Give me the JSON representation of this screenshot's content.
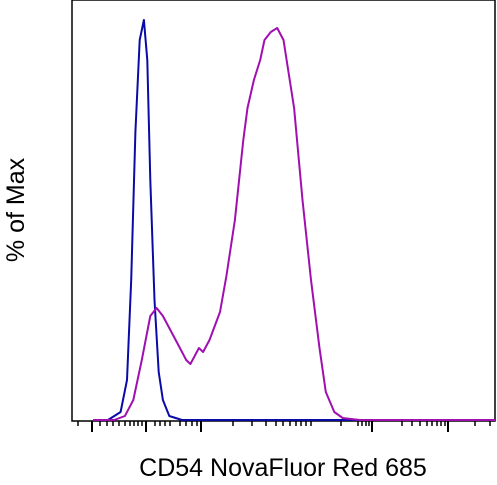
{
  "chart_data": {
    "type": "line",
    "title": "",
    "xlabel": "CD54 NovaFluor Red 685",
    "ylabel": "% of Max",
    "xscale": "biexponential (logicle)",
    "x_tick_labels": [],
    "y_tick_labels": [],
    "ylim": [
      0,
      100
    ],
    "grid": false,
    "legend": "none",
    "x_channel_range": [
      0,
      1000
    ],
    "series": [
      {
        "color": "#0a0aa8",
        "x": [
          50,
          85,
          115,
          130,
          140,
          150,
          160,
          170,
          178,
          185,
          195,
          205,
          215,
          230,
          260,
          400,
          1000
        ],
        "y": [
          0,
          0,
          2,
          10,
          35,
          72,
          95,
          100,
          90,
          60,
          30,
          12,
          5,
          1,
          0,
          0,
          0
        ]
      },
      {
        "color": "#a010b0",
        "x": [
          50,
          100,
          125,
          145,
          165,
          185,
          200,
          215,
          235,
          255,
          270,
          280,
          290,
          300,
          310,
          325,
          350,
          365,
          385,
          405,
          415,
          430,
          445,
          455,
          470,
          485,
          500,
          525,
          545,
          565,
          585,
          600,
          620,
          640,
          680,
          1000
        ],
        "y": [
          0,
          0,
          1,
          5,
          15,
          26,
          28,
          26,
          22,
          18,
          15,
          14,
          16,
          18,
          17,
          20,
          27,
          36,
          50,
          70,
          78,
          85,
          90,
          95,
          97,
          98,
          95,
          78,
          55,
          35,
          18,
          7,
          2,
          0.5,
          0,
          0
        ]
      }
    ]
  }
}
